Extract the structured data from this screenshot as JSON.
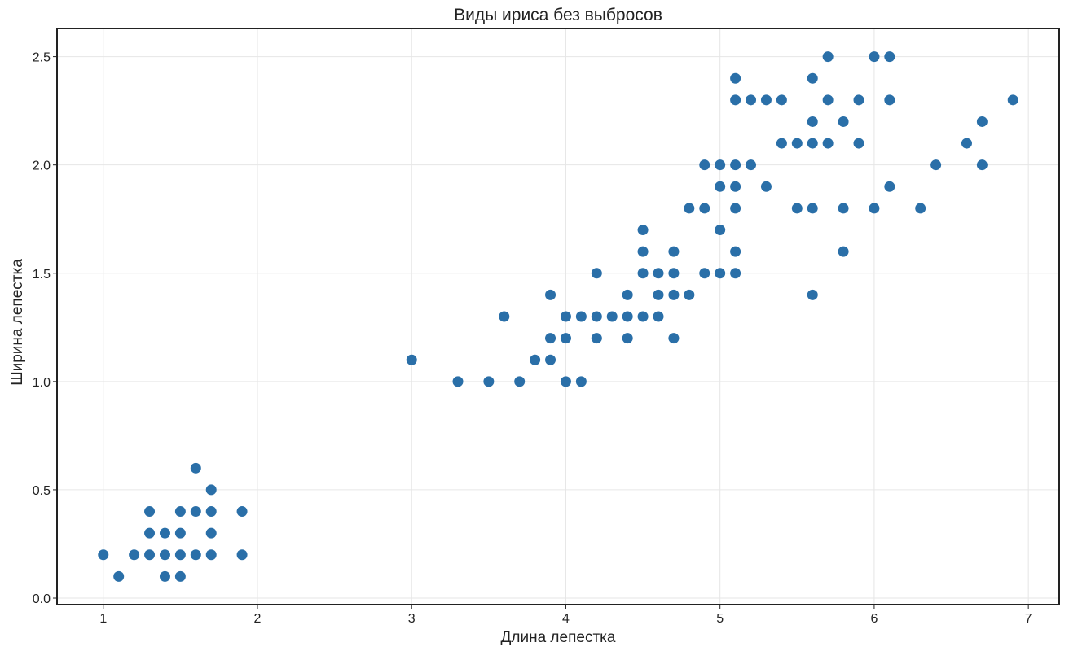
{
  "chart_data": {
    "type": "scatter",
    "title": "Виды ириса без выбросов",
    "xlabel": "Длина лепестка",
    "ylabel": "Ширина лепестка",
    "xlim": [
      0.7,
      7.2
    ],
    "ylim": [
      -0.03,
      2.63
    ],
    "xticks": [
      1,
      2,
      3,
      4,
      5,
      6,
      7
    ],
    "xtick_labels": [
      "1",
      "2",
      "3",
      "4",
      "5",
      "6",
      "7"
    ],
    "yticks": [
      0.0,
      0.5,
      1.0,
      1.5,
      2.0,
      2.5
    ],
    "ytick_labels": [
      "0.0",
      "0.5",
      "1.0",
      "1.5",
      "2.0",
      "2.5"
    ],
    "grid": true,
    "marker_color": "#2a6fa8",
    "series": [
      {
        "points": [
          [
            1.0,
            0.2
          ],
          [
            1.1,
            0.1
          ],
          [
            1.2,
            0.2
          ],
          [
            1.3,
            0.2
          ],
          [
            1.3,
            0.3
          ],
          [
            1.3,
            0.4
          ],
          [
            1.4,
            0.1
          ],
          [
            1.4,
            0.2
          ],
          [
            1.4,
            0.3
          ],
          [
            1.5,
            0.1
          ],
          [
            1.5,
            0.2
          ],
          [
            1.5,
            0.3
          ],
          [
            1.5,
            0.4
          ],
          [
            1.6,
            0.2
          ],
          [
            1.6,
            0.4
          ],
          [
            1.6,
            0.6
          ],
          [
            1.7,
            0.2
          ],
          [
            1.7,
            0.3
          ],
          [
            1.7,
            0.4
          ],
          [
            1.7,
            0.5
          ],
          [
            1.9,
            0.2
          ],
          [
            1.9,
            0.4
          ],
          [
            3.0,
            1.1
          ],
          [
            3.3,
            1.0
          ],
          [
            3.5,
            1.0
          ],
          [
            3.6,
            1.3
          ],
          [
            3.7,
            1.0
          ],
          [
            3.8,
            1.1
          ],
          [
            3.9,
            1.1
          ],
          [
            3.9,
            1.2
          ],
          [
            3.9,
            1.4
          ],
          [
            4.0,
            1.0
          ],
          [
            4.0,
            1.2
          ],
          [
            4.0,
            1.3
          ],
          [
            4.1,
            1.0
          ],
          [
            4.1,
            1.3
          ],
          [
            4.2,
            1.2
          ],
          [
            4.2,
            1.3
          ],
          [
            4.2,
            1.5
          ],
          [
            4.3,
            1.3
          ],
          [
            4.4,
            1.2
          ],
          [
            4.4,
            1.3
          ],
          [
            4.4,
            1.4
          ],
          [
            4.5,
            1.3
          ],
          [
            4.5,
            1.5
          ],
          [
            4.5,
            1.6
          ],
          [
            4.5,
            1.7
          ],
          [
            4.6,
            1.3
          ],
          [
            4.6,
            1.4
          ],
          [
            4.6,
            1.5
          ],
          [
            4.7,
            1.2
          ],
          [
            4.7,
            1.4
          ],
          [
            4.7,
            1.5
          ],
          [
            4.7,
            1.6
          ],
          [
            4.8,
            1.4
          ],
          [
            4.8,
            1.8
          ],
          [
            4.9,
            1.5
          ],
          [
            4.9,
            1.8
          ],
          [
            4.9,
            2.0
          ],
          [
            5.0,
            1.5
          ],
          [
            5.0,
            1.7
          ],
          [
            5.0,
            1.9
          ],
          [
            5.0,
            2.0
          ],
          [
            5.1,
            1.5
          ],
          [
            5.1,
            1.6
          ],
          [
            5.1,
            1.8
          ],
          [
            5.1,
            1.9
          ],
          [
            5.1,
            2.0
          ],
          [
            5.1,
            2.3
          ],
          [
            5.1,
            2.4
          ],
          [
            5.2,
            2.0
          ],
          [
            5.2,
            2.3
          ],
          [
            5.3,
            1.9
          ],
          [
            5.3,
            2.3
          ],
          [
            5.4,
            2.1
          ],
          [
            5.4,
            2.3
          ],
          [
            5.5,
            1.8
          ],
          [
            5.5,
            2.1
          ],
          [
            5.6,
            1.4
          ],
          [
            5.6,
            1.8
          ],
          [
            5.6,
            2.1
          ],
          [
            5.6,
            2.2
          ],
          [
            5.6,
            2.4
          ],
          [
            5.7,
            2.1
          ],
          [
            5.7,
            2.3
          ],
          [
            5.7,
            2.5
          ],
          [
            5.8,
            1.6
          ],
          [
            5.8,
            1.8
          ],
          [
            5.8,
            2.2
          ],
          [
            5.9,
            2.1
          ],
          [
            5.9,
            2.3
          ],
          [
            6.0,
            1.8
          ],
          [
            6.0,
            2.5
          ],
          [
            6.1,
            1.9
          ],
          [
            6.1,
            2.3
          ],
          [
            6.1,
            2.5
          ],
          [
            6.3,
            1.8
          ],
          [
            6.4,
            2.0
          ],
          [
            6.6,
            2.1
          ],
          [
            6.7,
            2.0
          ],
          [
            6.7,
            2.2
          ],
          [
            6.9,
            2.3
          ]
        ]
      }
    ]
  }
}
